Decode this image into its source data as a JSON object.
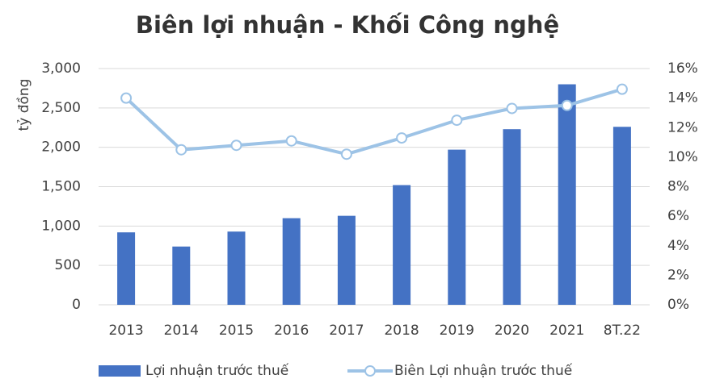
{
  "chart_data": {
    "type": "bar",
    "title": "Biên lợi nhuận - Khối Công nghệ",
    "ylabel": "tỷ đồng",
    "categories": [
      "2013",
      "2014",
      "2015",
      "2016",
      "2017",
      "2018",
      "2019",
      "2020",
      "2021",
      "8T.22"
    ],
    "series": [
      {
        "name": "Lợi nhuận trước thuế",
        "type": "bar",
        "color": "#4472c4",
        "values": [
          920,
          740,
          930,
          1100,
          1130,
          1520,
          1970,
          2230,
          2800,
          2260
        ]
      },
      {
        "name": "Biên Lợi nhuận trước thuế",
        "type": "line",
        "axis": "y2",
        "color": "#9dc3e6",
        "values": [
          14.0,
          10.5,
          10.8,
          11.1,
          10.2,
          11.3,
          12.5,
          13.3,
          13.5,
          14.6
        ]
      }
    ],
    "ylim": [
      0,
      3000
    ],
    "yticks": [
      0,
      500,
      {
        "value": 1000,
        "label": "1,000"
      },
      {
        "value": 1500,
        "label": "1,500"
      },
      {
        "value": 2000,
        "label": "2,000"
      },
      {
        "value": 2500,
        "label": "2,500"
      },
      {
        "value": 3000,
        "label": "3,000"
      }
    ],
    "y2lim": [
      0,
      16
    ],
    "y2ticks": [
      {
        "value": 0,
        "label": "0%"
      },
      {
        "value": 2,
        "label": "2%"
      },
      {
        "value": 4,
        "label": "4%"
      },
      {
        "value": 6,
        "label": "6%"
      },
      {
        "value": 8,
        "label": "8%"
      },
      {
        "value": 10,
        "label": "10%"
      },
      {
        "value": 12,
        "label": "12%"
      },
      {
        "value": 14,
        "label": "14%"
      },
      {
        "value": 16,
        "label": "16%"
      }
    ],
    "grid": true
  }
}
